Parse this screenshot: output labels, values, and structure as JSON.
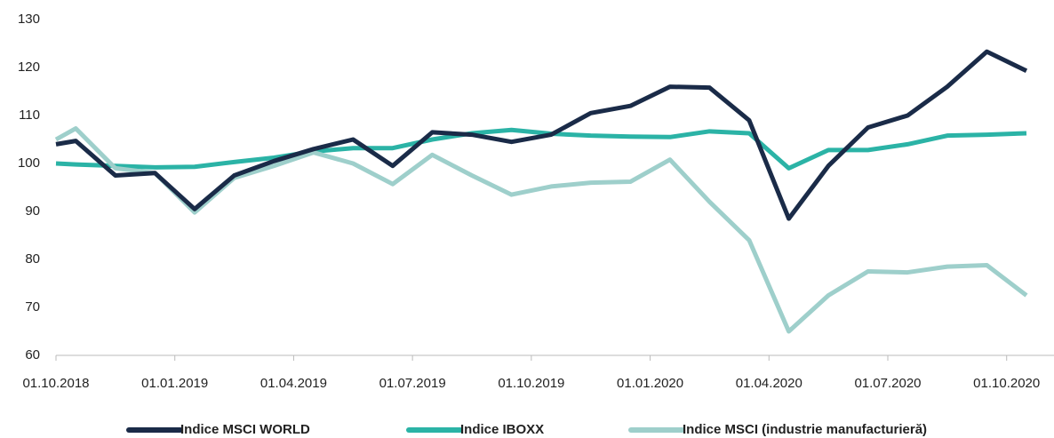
{
  "chart_data": {
    "type": "line",
    "x": [
      0,
      0.5,
      1.5,
      2.5,
      3.5,
      4.5,
      5.5,
      6.5,
      7.5,
      8.5,
      9.5,
      10.5,
      11.5,
      12.5,
      13.5,
      14.5,
      15.5,
      16.5,
      17.5,
      18.5,
      19.5,
      20.5,
      21.5,
      22.5,
      23.5,
      24.5
    ],
    "series": [
      {
        "name": "Indice MSCI WORLD",
        "color": "#1a2b48",
        "values": [
          104,
          104.7,
          97.5,
          98,
          90.5,
          97.5,
          100.5,
          103,
          105,
          99.5,
          106.5,
          106,
          104.5,
          106,
          110.5,
          112,
          116,
          115.8,
          109,
          88.5,
          99.5,
          107.5,
          110,
          116,
          123.3,
          119.3
        ]
      },
      {
        "name": "Indice IBOXX",
        "color": "#2bb3a6",
        "values": [
          100,
          99.8,
          99.5,
          99.2,
          99.3,
          100.3,
          101.2,
          102.5,
          103.2,
          103.2,
          105,
          106.3,
          107,
          106.2,
          105.8,
          105.6,
          105.5,
          106.7,
          106.3,
          99,
          102.8,
          102.8,
          104,
          105.8,
          106,
          106.3
        ]
      },
      {
        "name": "Indice MSCI (industrie manufacturieră)",
        "color": "#9ecfcb",
        "values": [
          105,
          107.3,
          99,
          98,
          89.8,
          97,
          99.5,
          102.3,
          100,
          95.7,
          101.8,
          97.5,
          93.5,
          95.2,
          96,
          96.2,
          100.8,
          92,
          84,
          65,
          72.5,
          77.5,
          77.3,
          78.5,
          78.8,
          72.5
        ]
      }
    ],
    "xlim": [
      0,
      24.5
    ],
    "xticks": [
      {
        "value": 0,
        "label": "01.10.2018"
      },
      {
        "value": 3,
        "label": "01.01.2019"
      },
      {
        "value": 6,
        "label": "01.04.2019"
      },
      {
        "value": 9,
        "label": "01.07.2019"
      },
      {
        "value": 12,
        "label": "01.10.2019"
      },
      {
        "value": 15,
        "label": "01.01.2020"
      },
      {
        "value": 18,
        "label": "01.04.2020"
      },
      {
        "value": 21,
        "label": "01.07.2020"
      },
      {
        "value": 24,
        "label": "01.10.2020"
      }
    ],
    "ylim": [
      60,
      130
    ],
    "yticks": [
      60,
      70,
      80,
      90,
      100,
      110,
      120,
      130
    ],
    "legend": "bottom"
  }
}
